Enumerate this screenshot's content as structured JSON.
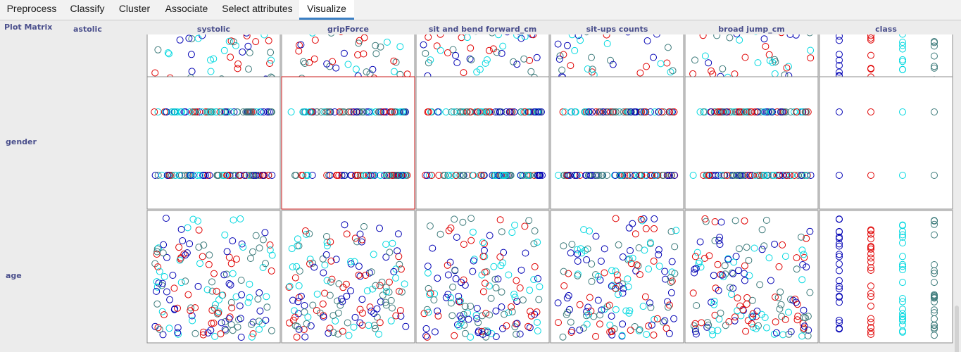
{
  "tabs": [
    {
      "label": "Preprocess",
      "active": false
    },
    {
      "label": "Classify",
      "active": false
    },
    {
      "label": "Cluster",
      "active": false
    },
    {
      "label": "Associate",
      "active": false
    },
    {
      "label": "Select attributes",
      "active": false
    },
    {
      "label": "Visualize",
      "active": true
    }
  ],
  "plot_matrix": {
    "title": "Plot Matrix",
    "columns": [
      "astolic",
      "systolic",
      "gripForce",
      "sit and bend forward_cm",
      "sit-ups counts",
      "broad jump_cm",
      "class"
    ],
    "rows": [
      "",
      "gender",
      "age"
    ],
    "selected_cell": {
      "row": "gender",
      "column": "gripForce"
    }
  },
  "colors": {
    "series": [
      "#0000b4",
      "#e00000",
      "#00d8e0",
      "#3c7a7a"
    ],
    "selected_border": "#c81818"
  },
  "chart_data": {
    "type": "scatter",
    "title": "",
    "x_attributes": [
      "astolic",
      "systolic",
      "gripForce",
      "sit and bend forward_cm",
      "sit-ups counts",
      "broad jump_cm",
      "class"
    ],
    "y_attributes": [
      "",
      "gender",
      "age"
    ],
    "class_values": 4,
    "gender_levels": 2,
    "grid": false,
    "legend": "none"
  }
}
